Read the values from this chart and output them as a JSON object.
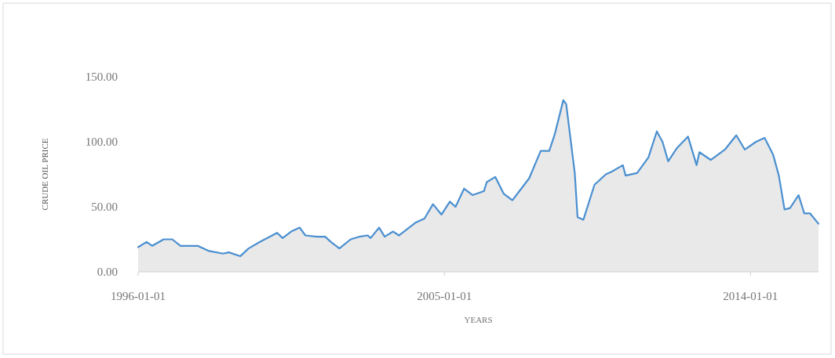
{
  "chart_data": {
    "type": "area",
    "xlabel": "YEARS",
    "ylabel": "CRUDE OIL PRICE",
    "x": [
      "1996-01",
      "1996-04",
      "1996-06",
      "1996-10",
      "1997-01",
      "1997-04",
      "1997-10",
      "1998-02",
      "1998-07",
      "1998-09",
      "1999-01",
      "1999-04",
      "1999-08",
      "2000-02",
      "2000-04",
      "2000-07",
      "2000-10",
      "2000-12",
      "2001-04",
      "2001-07",
      "2001-09",
      "2001-12",
      "2002-04",
      "2002-07",
      "2002-10",
      "2002-11",
      "2003-02",
      "2003-04",
      "2003-07",
      "2003-09",
      "2004-03",
      "2004-06",
      "2004-09",
      "2004-12",
      "2005-03",
      "2005-05",
      "2005-08",
      "2005-11",
      "2006-03",
      "2006-04",
      "2006-07",
      "2006-10",
      "2007-01",
      "2007-07",
      "2007-11",
      "2008-02",
      "2008-04",
      "2008-07",
      "2008-08",
      "2008-11",
      "2008-12",
      "2009-02",
      "2009-06",
      "2009-10",
      "2009-12",
      "2010-04",
      "2010-05",
      "2010-09",
      "2011-01",
      "2011-04",
      "2011-06",
      "2011-08",
      "2011-11",
      "2012-03",
      "2012-06",
      "2012-07",
      "2012-11",
      "2013-04",
      "2013-08",
      "2013-11",
      "2014-03",
      "2014-06",
      "2014-09",
      "2014-11",
      "2015-01",
      "2015-03",
      "2015-06",
      "2015-08",
      "2015-10",
      "2016-01"
    ],
    "series": [
      {
        "color": "#4a8fd0",
        "values": [
          19,
          23,
          20,
          25,
          25,
          20,
          20,
          16,
          14,
          15,
          12,
          18,
          23,
          30,
          26,
          31,
          34,
          28,
          27,
          27,
          23,
          18,
          25,
          27,
          28,
          26,
          34,
          27,
          31,
          28,
          38,
          41,
          52,
          44,
          54,
          50,
          64,
          59,
          62,
          69,
          73,
          60,
          55,
          72,
          93,
          93,
          106,
          132,
          129,
          76,
          42,
          40,
          67,
          75,
          77,
          82,
          74,
          76,
          88,
          108,
          100,
          85,
          95,
          104,
          82,
          92,
          86,
          94,
          105,
          94,
          100,
          103,
          90,
          74,
          48,
          49,
          59,
          45,
          45,
          37
        ]
      }
    ],
    "xlim": [
      "1996-01",
      "2016-01"
    ],
    "xticks": [
      "1996-01-01",
      "2005-01-01",
      "2014-01-01"
    ],
    "ylim": [
      0,
      150
    ],
    "yticks": [
      {
        "value": 0,
        "label": "0.00"
      },
      {
        "value": 50,
        "label": "50.00"
      },
      {
        "value": 100,
        "label": "100.00"
      },
      {
        "value": 150,
        "label": "150.00"
      }
    ]
  }
}
